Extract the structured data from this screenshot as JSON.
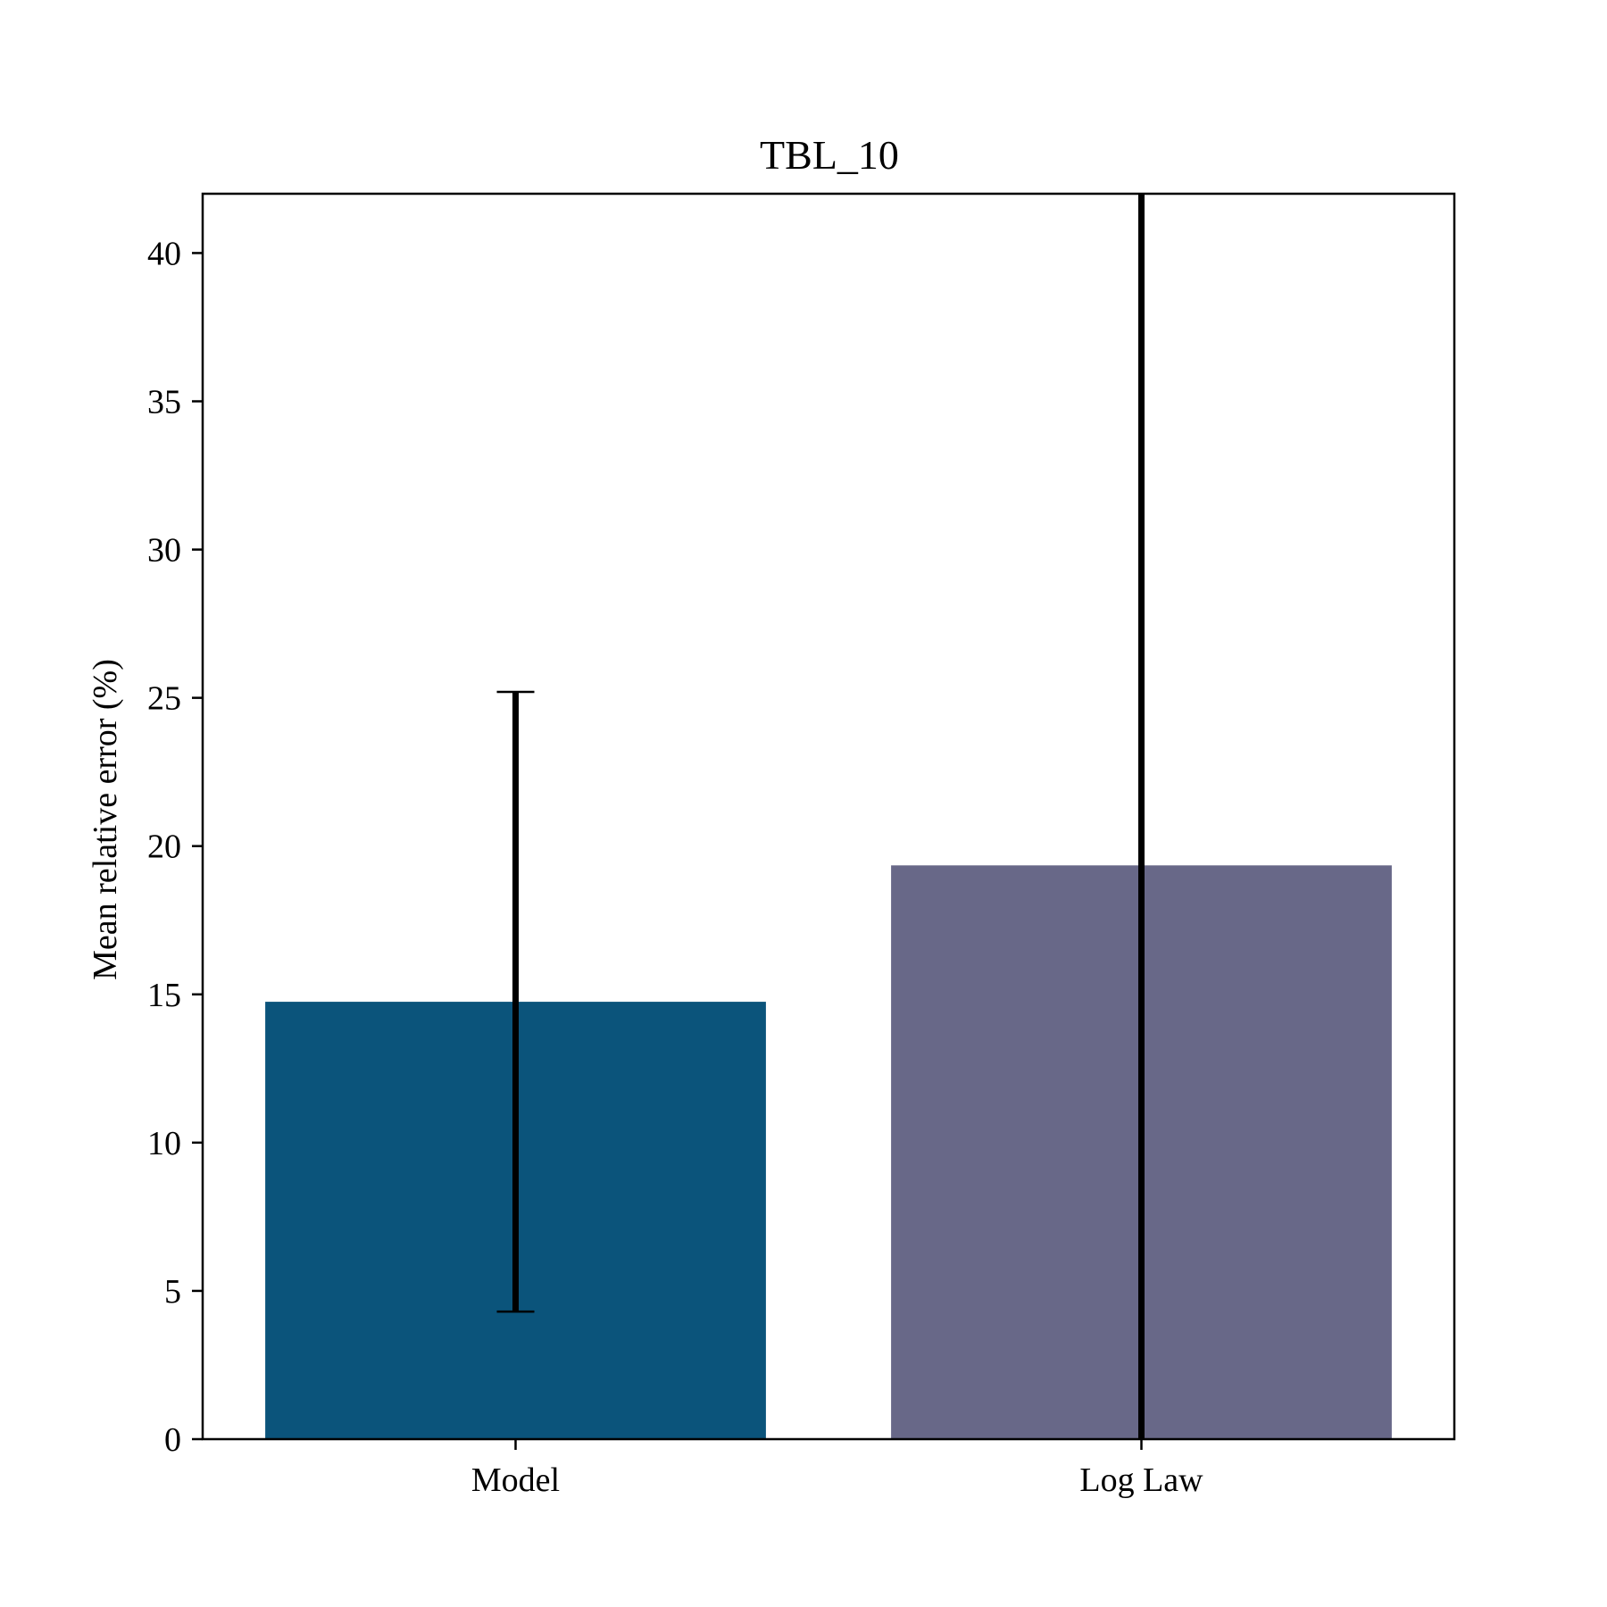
{
  "chart_data": {
    "type": "bar",
    "title": "TBL_10",
    "xlabel": "",
    "ylabel": "Mean relative error (%)",
    "categories": [
      "Model",
      "Log Law"
    ],
    "values": [
      14.75,
      19.35
    ],
    "error_low": [
      4.3,
      0
    ],
    "error_high": [
      25.2,
      42
    ],
    "colors": [
      "#0b547b",
      "#686888"
    ],
    "ylim": [
      0,
      42
    ],
    "yticks": [
      "0",
      "5",
      "10",
      "15",
      "20",
      "25",
      "30",
      "35",
      "40"
    ],
    "grid": false
  }
}
